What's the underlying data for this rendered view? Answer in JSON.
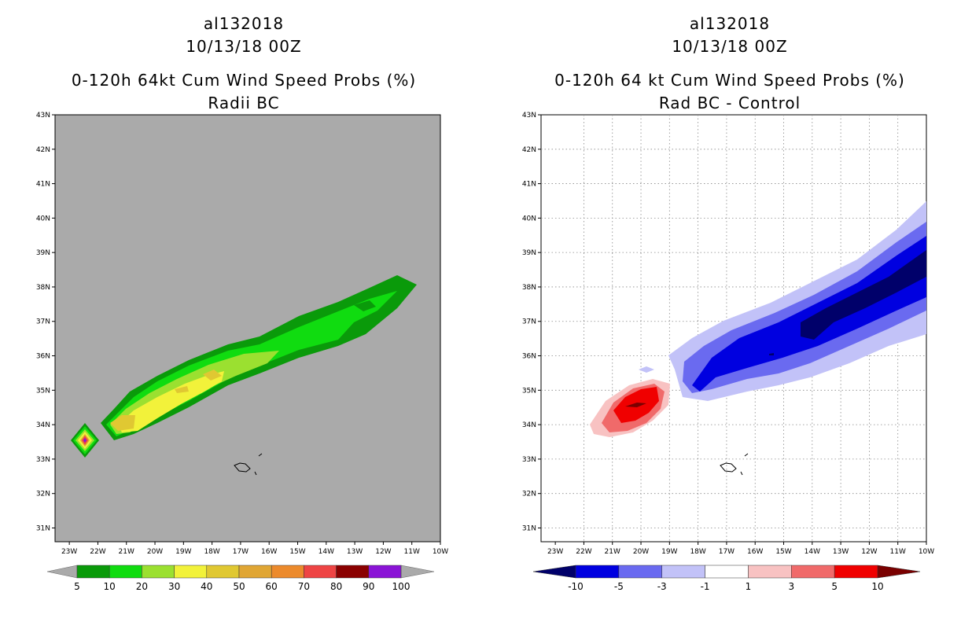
{
  "chart_data": [
    {
      "type": "heatmap",
      "title_lines": [
        "al132018",
        "10/13/18 00Z",
        "0-120h 64kt Cum Wind Speed Probs (%)",
        "Radii BC"
      ],
      "x_ticks": [
        "23W",
        "22W",
        "21W",
        "20W",
        "19W",
        "18W",
        "17W",
        "16W",
        "15W",
        "14W",
        "13W",
        "12W",
        "11W",
        "10W"
      ],
      "y_ticks": [
        "31N",
        "32N",
        "33N",
        "34N",
        "35N",
        "36N",
        "37N",
        "38N",
        "39N",
        "40N",
        "41N",
        "42N",
        "43N"
      ],
      "xlim": [
        -23.5,
        -10
      ],
      "ylim": [
        30.6,
        43
      ],
      "colorbar_labels": [
        "5",
        "10",
        "20",
        "30",
        "40",
        "50",
        "60",
        "70",
        "80",
        "90",
        "100"
      ],
      "colorbar_colors": [
        "#0a9a0a",
        "#10dc10",
        "#9be030",
        "#f2f23a",
        "#e0c832",
        "#e0a634",
        "#ec8a2c",
        "#ee4444",
        "#8a0000",
        "#8a14d6"
      ],
      "background": "#aaaaaa",
      "max_value_location": {
        "lon": -22.5,
        "lat": 33.5
      }
    },
    {
      "type": "heatmap",
      "title_lines": [
        "al132018",
        "10/13/18 00Z",
        "0-120h 64 kt Cum Wind Speed Probs (%)",
        "Rad BC - Control"
      ],
      "x_ticks": [
        "23W",
        "22W",
        "21W",
        "20W",
        "19W",
        "18W",
        "17W",
        "16W",
        "15W",
        "14W",
        "13W",
        "12W",
        "11W",
        "10W"
      ],
      "y_ticks": [
        "31N",
        "32N",
        "33N",
        "34N",
        "35N",
        "36N",
        "37N",
        "38N",
        "39N",
        "40N",
        "41N",
        "42N",
        "43N"
      ],
      "xlim": [
        -23.5,
        -10
      ],
      "ylim": [
        30.6,
        43
      ],
      "colorbar_labels": [
        "-10",
        "-5",
        "-3",
        "-1",
        "1",
        "3",
        "5",
        "10"
      ],
      "colorbar_colors": [
        "#0000e0",
        "#6a6af0",
        "#c2c2f8",
        "#ffffff",
        "#f8c2c2",
        "#f06a6a",
        "#f00000"
      ],
      "colorbar_end_colors": [
        "#00006a",
        "#7a0000"
      ],
      "grid": true
    }
  ]
}
